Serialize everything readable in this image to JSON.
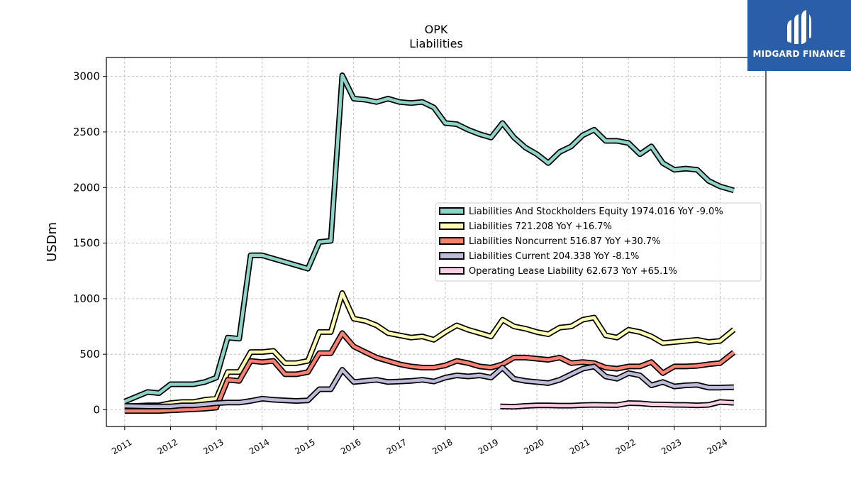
{
  "header": {
    "title": "OPK",
    "subtitle": "Liabilities"
  },
  "logo": {
    "text": "MIDGARD FINANCE",
    "icon": "midgard-logo-icon"
  },
  "colors": {
    "series": [
      "#8dd3c7",
      "#ffffb3",
      "#fb8072",
      "#bebada",
      "#fccde5"
    ],
    "outline": "#000000",
    "grid": "#b0b0b0",
    "logo_bg": "#2a5ea8"
  },
  "chart_data": {
    "type": "line",
    "title": "OPK",
    "subtitle": "Liabilities",
    "ylabel": "USDm",
    "xlabel": "",
    "xlim": [
      2010.6,
      2025.0
    ],
    "ylim": [
      -150,
      3170
    ],
    "yticks": [
      0,
      500,
      1000,
      1500,
      2000,
      2500,
      3000
    ],
    "xticks": [
      "2011",
      "2012",
      "2013",
      "2014",
      "2015",
      "2016",
      "2017",
      "2018",
      "2019",
      "2020",
      "2021",
      "2022",
      "2023",
      "2024"
    ],
    "grid": true,
    "legend_position": "center-right",
    "series": [
      {
        "name": "Liabilities And Stockholders Equity",
        "legend": "Liabilities And Stockholders Equity  1974.016 YoY -9.0%",
        "x": [
          2011.0,
          2011.5,
          2011.75,
          2012.0,
          2012.25,
          2012.5,
          2012.75,
          2013.0,
          2013.25,
          2013.5,
          2013.75,
          2014.0,
          2014.25,
          2014.5,
          2014.75,
          2015.0,
          2015.25,
          2015.5,
          2015.75,
          2016.0,
          2016.25,
          2016.5,
          2016.75,
          2017.0,
          2017.25,
          2017.5,
          2017.75,
          2018.0,
          2018.25,
          2018.5,
          2018.75,
          2019.0,
          2019.25,
          2019.5,
          2019.75,
          2020.0,
          2020.25,
          2020.5,
          2020.75,
          2021.0,
          2021.25,
          2021.5,
          2021.75,
          2022.0,
          2022.25,
          2022.5,
          2022.75,
          2023.0,
          2023.25,
          2023.5,
          2023.75,
          2024.0,
          2024.3
        ],
        "values": [
          75,
          160,
          150,
          230,
          230,
          230,
          250,
          290,
          650,
          640,
          1390,
          1390,
          1360,
          1330,
          1300,
          1270,
          1510,
          1520,
          3010,
          2800,
          2790,
          2770,
          2800,
          2770,
          2760,
          2770,
          2720,
          2580,
          2570,
          2520,
          2480,
          2450,
          2580,
          2450,
          2360,
          2300,
          2220,
          2320,
          2370,
          2470,
          2520,
          2420,
          2420,
          2400,
          2300,
          2370,
          2220,
          2160,
          2170,
          2160,
          2060,
          2010,
          1974
        ]
      },
      {
        "name": "Liabilities",
        "legend": "Liabilities  721.208 YoY +16.7%",
        "x": [
          2011.0,
          2011.5,
          2011.75,
          2012.0,
          2012.25,
          2012.5,
          2012.75,
          2013.0,
          2013.25,
          2013.5,
          2013.75,
          2014.0,
          2014.25,
          2014.5,
          2014.75,
          2015.0,
          2015.25,
          2015.5,
          2015.75,
          2016.0,
          2016.25,
          2016.5,
          2016.75,
          2017.0,
          2017.25,
          2017.5,
          2017.75,
          2018.0,
          2018.25,
          2018.5,
          2018.75,
          2019.0,
          2019.25,
          2019.5,
          2019.75,
          2020.0,
          2020.25,
          2020.5,
          2020.75,
          2021.0,
          2021.25,
          2021.5,
          2021.75,
          2022.0,
          2022.25,
          2022.5,
          2022.75,
          2023.0,
          2023.25,
          2023.5,
          2023.75,
          2024.0,
          2024.3
        ],
        "values": [
          30,
          40,
          40,
          60,
          70,
          70,
          90,
          100,
          340,
          340,
          520,
          520,
          530,
          420,
          420,
          440,
          700,
          700,
          1050,
          820,
          800,
          760,
          690,
          670,
          650,
          660,
          630,
          700,
          760,
          720,
          690,
          660,
          810,
          750,
          730,
          700,
          680,
          740,
          750,
          810,
          830,
          670,
          650,
          720,
          700,
          660,
          600,
          610,
          620,
          630,
          610,
          620,
          721
        ]
      },
      {
        "name": "Liabilities Noncurrent",
        "legend": "Liabilities Noncurrent  516.87 YoY +30.7%",
        "x": [
          2011.0,
          2011.5,
          2011.75,
          2012.0,
          2012.25,
          2012.5,
          2012.75,
          2013.0,
          2013.25,
          2013.5,
          2013.75,
          2014.0,
          2014.25,
          2014.5,
          2014.75,
          2015.0,
          2015.25,
          2015.5,
          2015.75,
          2016.0,
          2016.25,
          2016.5,
          2016.75,
          2017.0,
          2017.25,
          2017.5,
          2017.75,
          2018.0,
          2018.25,
          2018.5,
          2018.75,
          2019.0,
          2019.25,
          2019.5,
          2019.75,
          2020.0,
          2020.25,
          2020.5,
          2020.75,
          2021.0,
          2021.25,
          2021.5,
          2021.75,
          2022.0,
          2022.25,
          2022.5,
          2022.75,
          2023.0,
          2023.25,
          2023.5,
          2023.75,
          2024.0,
          2024.3
        ],
        "values": [
          -10,
          -10,
          -10,
          -5,
          0,
          5,
          10,
          20,
          270,
          260,
          440,
          430,
          440,
          320,
          320,
          340,
          510,
          510,
          690,
          570,
          520,
          470,
          440,
          410,
          390,
          380,
          380,
          400,
          440,
          420,
          390,
          380,
          410,
          470,
          470,
          460,
          450,
          470,
          420,
          430,
          420,
          380,
          370,
          390,
          390,
          430,
          330,
          390,
          390,
          395,
          410,
          420,
          517
        ]
      },
      {
        "name": "Liabilities Current",
        "legend": "Liabilities Current  204.338 YoY -8.1%",
        "x": [
          2011.0,
          2011.5,
          2011.75,
          2012.0,
          2012.25,
          2012.5,
          2012.75,
          2013.0,
          2013.25,
          2013.5,
          2013.75,
          2014.0,
          2014.25,
          2014.5,
          2014.75,
          2015.0,
          2015.25,
          2015.5,
          2015.75,
          2016.0,
          2016.25,
          2016.5,
          2016.75,
          2017.0,
          2017.25,
          2017.5,
          2017.75,
          2018.0,
          2018.25,
          2018.5,
          2018.75,
          2019.0,
          2019.25,
          2019.5,
          2019.75,
          2020.0,
          2020.25,
          2020.5,
          2020.75,
          2021.0,
          2021.25,
          2021.5,
          2021.75,
          2022.0,
          2022.25,
          2022.5,
          2022.75,
          2023.0,
          2023.25,
          2023.5,
          2023.75,
          2024.0,
          2024.3
        ],
        "values": [
          35,
          30,
          30,
          30,
          40,
          40,
          50,
          60,
          65,
          65,
          80,
          100,
          90,
          85,
          80,
          85,
          185,
          185,
          360,
          250,
          260,
          270,
          250,
          255,
          260,
          270,
          255,
          290,
          310,
          300,
          310,
          290,
          380,
          280,
          260,
          250,
          240,
          270,
          320,
          370,
          390,
          300,
          280,
          330,
          310,
          220,
          250,
          210,
          220,
          225,
          200,
          200,
          204
        ]
      },
      {
        "name": "Operating Lease Liability",
        "legend": "Operating Lease Liability  62.673 YoY +65.1%",
        "x": [
          2019.2,
          2019.5,
          2019.75,
          2020.0,
          2020.25,
          2020.5,
          2020.75,
          2021.0,
          2021.25,
          2021.5,
          2021.75,
          2022.0,
          2022.25,
          2022.5,
          2022.75,
          2023.0,
          2023.25,
          2023.5,
          2023.75,
          2024.0,
          2024.3
        ],
        "values": [
          30,
          28,
          35,
          40,
          40,
          38,
          38,
          42,
          45,
          43,
          42,
          60,
          58,
          50,
          48,
          45,
          44,
          40,
          45,
          70,
          63
        ]
      }
    ]
  }
}
